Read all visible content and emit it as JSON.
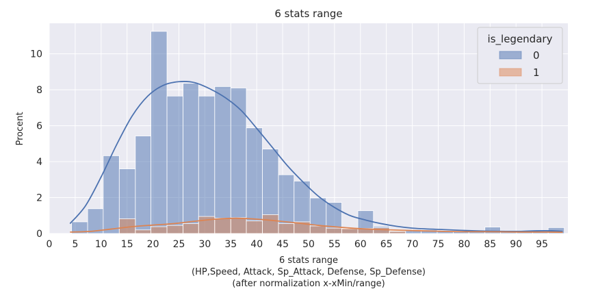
{
  "chart_data": {
    "type": "bar",
    "title": "6 stats range",
    "xlabel_lines": [
      "6 stats range",
      "(HP,Speed, Attack, Sp_Attack, Defense, Sp_Defense)",
      "(after normalization x-xMin/range)"
    ],
    "ylabel": "Procent",
    "xlim": [
      0,
      100
    ],
    "ylim": [
      0,
      11.7
    ],
    "x_ticks": [
      0,
      5,
      10,
      15,
      20,
      25,
      30,
      35,
      40,
      45,
      50,
      55,
      60,
      65,
      70,
      75,
      80,
      85,
      90,
      95
    ],
    "y_ticks": [
      0,
      2,
      4,
      6,
      8,
      10
    ],
    "grid": true,
    "legend": {
      "title": "is_legendary",
      "position": "top-right",
      "entries": [
        "0",
        "1"
      ]
    },
    "series": [
      {
        "name": "0",
        "color": "#4c72b0",
        "bins": [
          [
            4.3,
            7.4,
            0.65
          ],
          [
            7.4,
            10.4,
            1.38
          ],
          [
            10.4,
            13.5,
            4.33
          ],
          [
            13.5,
            16.6,
            3.6
          ],
          [
            16.6,
            19.6,
            5.43
          ],
          [
            19.6,
            22.7,
            11.25
          ],
          [
            22.7,
            25.8,
            7.65
          ],
          [
            25.8,
            28.8,
            8.36
          ],
          [
            28.8,
            31.9,
            7.65
          ],
          [
            31.9,
            35.0,
            8.18
          ],
          [
            35.0,
            38.0,
            8.1
          ],
          [
            38.0,
            41.1,
            5.88
          ],
          [
            41.1,
            44.2,
            4.7
          ],
          [
            44.2,
            47.2,
            3.27
          ],
          [
            47.2,
            50.3,
            2.92
          ],
          [
            50.3,
            53.4,
            1.98
          ],
          [
            53.4,
            56.4,
            1.73
          ],
          [
            56.4,
            59.5,
            0.25
          ],
          [
            59.5,
            62.5,
            1.27
          ],
          [
            62.5,
            65.6,
            0.4
          ],
          [
            65.6,
            68.7,
            0.15
          ],
          [
            68.7,
            71.7,
            0.15
          ],
          [
            71.7,
            74.8,
            0.2
          ],
          [
            74.8,
            77.9,
            0.15
          ],
          [
            77.9,
            80.9,
            0.15
          ],
          [
            80.9,
            84.0,
            0.1
          ],
          [
            84.0,
            87.0,
            0.36
          ],
          [
            87.0,
            90.1,
            0.08
          ],
          [
            90.1,
            93.2,
            0.08
          ],
          [
            93.2,
            96.2,
            0.08
          ],
          [
            96.2,
            99.3,
            0.33
          ]
        ],
        "kde_x": [
          4,
          7,
          10,
          13,
          16,
          19,
          22,
          25,
          28,
          31,
          34,
          37,
          40,
          43,
          46,
          49,
          52,
          55,
          58,
          61,
          64,
          67,
          70,
          73,
          76,
          79,
          82,
          85,
          88,
          91,
          94,
          97,
          99
        ],
        "kde_y": [
          0.55,
          1.55,
          3.15,
          4.95,
          6.55,
          7.65,
          8.25,
          8.45,
          8.4,
          8.05,
          7.55,
          6.85,
          5.85,
          4.8,
          3.75,
          2.85,
          2.05,
          1.45,
          1.0,
          0.75,
          0.55,
          0.4,
          0.3,
          0.25,
          0.22,
          0.18,
          0.15,
          0.13,
          0.12,
          0.12,
          0.15,
          0.15,
          0.12
        ]
      },
      {
        "name": "1",
        "color": "#dd8452",
        "bins": [
          [
            13.5,
            16.6,
            0.82
          ],
          [
            16.6,
            19.6,
            0.2
          ],
          [
            19.6,
            22.7,
            0.38
          ],
          [
            22.7,
            25.8,
            0.45
          ],
          [
            25.8,
            28.8,
            0.55
          ],
          [
            28.8,
            31.9,
            0.95
          ],
          [
            31.9,
            35.0,
            0.85
          ],
          [
            35.0,
            38.0,
            0.88
          ],
          [
            38.0,
            41.1,
            0.7
          ],
          [
            41.1,
            44.2,
            1.05
          ],
          [
            44.2,
            47.2,
            0.55
          ],
          [
            47.2,
            50.3,
            0.65
          ],
          [
            50.3,
            53.4,
            0.42
          ],
          [
            53.4,
            56.4,
            0.3
          ],
          [
            56.4,
            59.5,
            0.28
          ],
          [
            59.5,
            62.5,
            0.28
          ],
          [
            62.5,
            65.6,
            0.32
          ],
          [
            65.6,
            68.7,
            0.12
          ]
        ],
        "kde_x": [
          4,
          8,
          12,
          16,
          20,
          24,
          28,
          32,
          36,
          40,
          44,
          48,
          52,
          56,
          60,
          64,
          68,
          72,
          76,
          80,
          84,
          88,
          92,
          96,
          99
        ],
        "kde_y": [
          0.08,
          0.12,
          0.25,
          0.38,
          0.47,
          0.55,
          0.68,
          0.8,
          0.85,
          0.8,
          0.7,
          0.58,
          0.45,
          0.35,
          0.27,
          0.22,
          0.18,
          0.15,
          0.12,
          0.1,
          0.1,
          0.09,
          0.08,
          0.08,
          0.07
        ]
      }
    ]
  }
}
